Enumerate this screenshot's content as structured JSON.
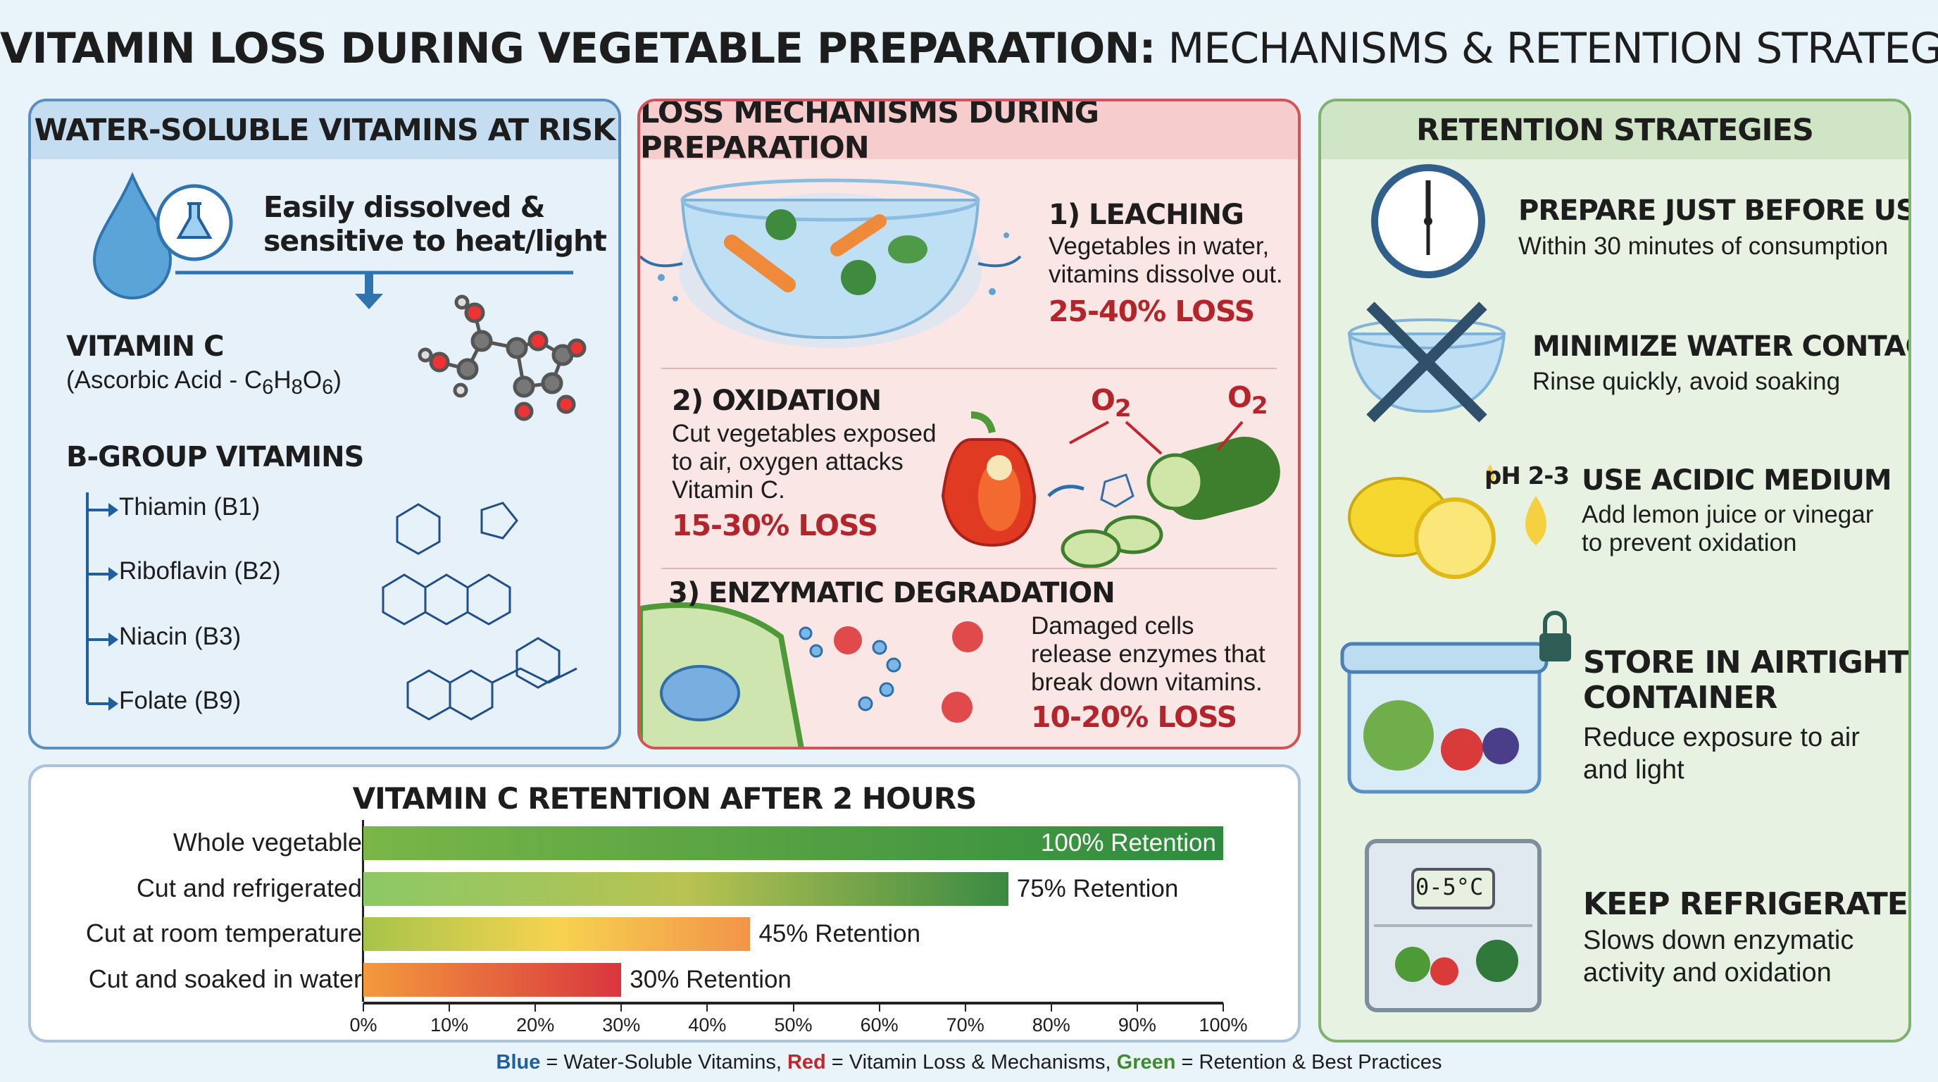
{
  "title": {
    "bold": "VITAMIN LOSS DURING VEGETABLE PREPARATION:",
    "rest": " MECHANISMS & RETENTION STRATEGIES"
  },
  "water_soluble": {
    "header": "WATER-SOLUBLE VITAMINS AT RISK",
    "intro": [
      "Easily dissolved &",
      "sensitive to heat/light"
    ],
    "vitamin_c": {
      "name": "VITAMIN C",
      "formula_prefix": "(Ascorbic Acid - C",
      "f1": "6",
      "h": "H",
      "f2": "8",
      "o": "O",
      "f3": "6",
      "close": ")"
    },
    "b_group": {
      "title": "B-GROUP VITAMINS",
      "items": [
        "Thiamin (B1)",
        "Riboflavin (B2)",
        "Niacin (B3)",
        "Folate (B9)"
      ]
    },
    "colors": {
      "accent": "#1f5f9e",
      "header_bg": "#c5ddf0"
    }
  },
  "mechanisms": {
    "header": "LOSS MECHANISMS DURING PREPARATION",
    "items": [
      {
        "title": "1) LEACHING",
        "lines": [
          "Vegetables in water,",
          "vitamins dissolve out."
        ],
        "loss": "25-40% LOSS"
      },
      {
        "title": "2) OXIDATION",
        "lines": [
          "Cut vegetables exposed",
          "to air, oxygen attacks",
          "Vitamin C."
        ],
        "loss": "15-30% LOSS",
        "o2_label": "O",
        "o2_sub": "2"
      },
      {
        "title": "3) ENZYMATIC DEGRADATION",
        "lines": [
          "Damaged cells",
          "release enzymes that",
          "break down vitamins."
        ],
        "loss": "10-20% LOSS"
      }
    ],
    "colors": {
      "loss": "#b3252a",
      "header_bg": "#f6cccc"
    }
  },
  "strategies": {
    "header": "RETENTION STRATEGIES",
    "items": [
      {
        "icon": "clock-icon",
        "title": "PREPARE JUST BEFORE USE",
        "lines": [
          "Within 30 minutes of consumption"
        ]
      },
      {
        "icon": "no-water-bowl-icon",
        "title": "MINIMIZE WATER CONTACT",
        "lines": [
          "Rinse quickly, avoid soaking"
        ]
      },
      {
        "icon": "lemon-icon",
        "title": "USE ACIDIC MEDIUM",
        "lines": [
          "Add lemon juice or vinegar",
          "to prevent oxidation"
        ],
        "badge": "pH 2-3"
      },
      {
        "icon": "airtight-container-icon",
        "title": [
          "STORE IN AIRTIGHT",
          "CONTAINER"
        ],
        "lines": [
          "Reduce exposure to air",
          "and light"
        ]
      },
      {
        "icon": "refrigerator-icon",
        "title": "KEEP REFRIGERATED",
        "lines": [
          "Slows down enzymatic",
          "activity and oxidation"
        ],
        "display": "0-5°C"
      }
    ],
    "colors": {
      "header_bg": "#cfe5c5"
    }
  },
  "chart_data": {
    "type": "bar",
    "orientation": "horizontal",
    "title": "VITAMIN C RETENTION AFTER 2 HOURS",
    "categories": [
      "Whole vegetable",
      "Cut and refrigerated",
      "Cut at room temperature",
      "Cut and soaked in water"
    ],
    "values": [
      100,
      75,
      45,
      30
    ],
    "data_labels": [
      "100% Retention",
      "75% Retention",
      "45% Retention",
      "30% Retention"
    ],
    "xlim": [
      0,
      100
    ],
    "xticks": [
      "0%",
      "10%",
      "20%",
      "30%",
      "40%",
      "50%",
      "60%",
      "70%",
      "80%",
      "90%",
      "100%"
    ],
    "grid": false,
    "bar_colors": [
      [
        "#7ab648",
        "#2e8b3e"
      ],
      [
        "#8cc866",
        "#b8c352",
        "#3a8a42"
      ],
      [
        "#a6c44a",
        "#f6d34f",
        "#f2944a"
      ],
      [
        "#f39a3c",
        "#d9363e"
      ]
    ]
  },
  "legend": {
    "blue": "Blue",
    "blue_text": " = Water-Soluble Vitamins, ",
    "red": "Red",
    "red_text": " = Vitamin Loss & Mechanisms, ",
    "green": "Green",
    "green_text": " = Retention & Best Practices",
    "colors": {
      "blue": "#1f5f9e",
      "red": "#c0262c",
      "green": "#3f8a2e"
    }
  }
}
